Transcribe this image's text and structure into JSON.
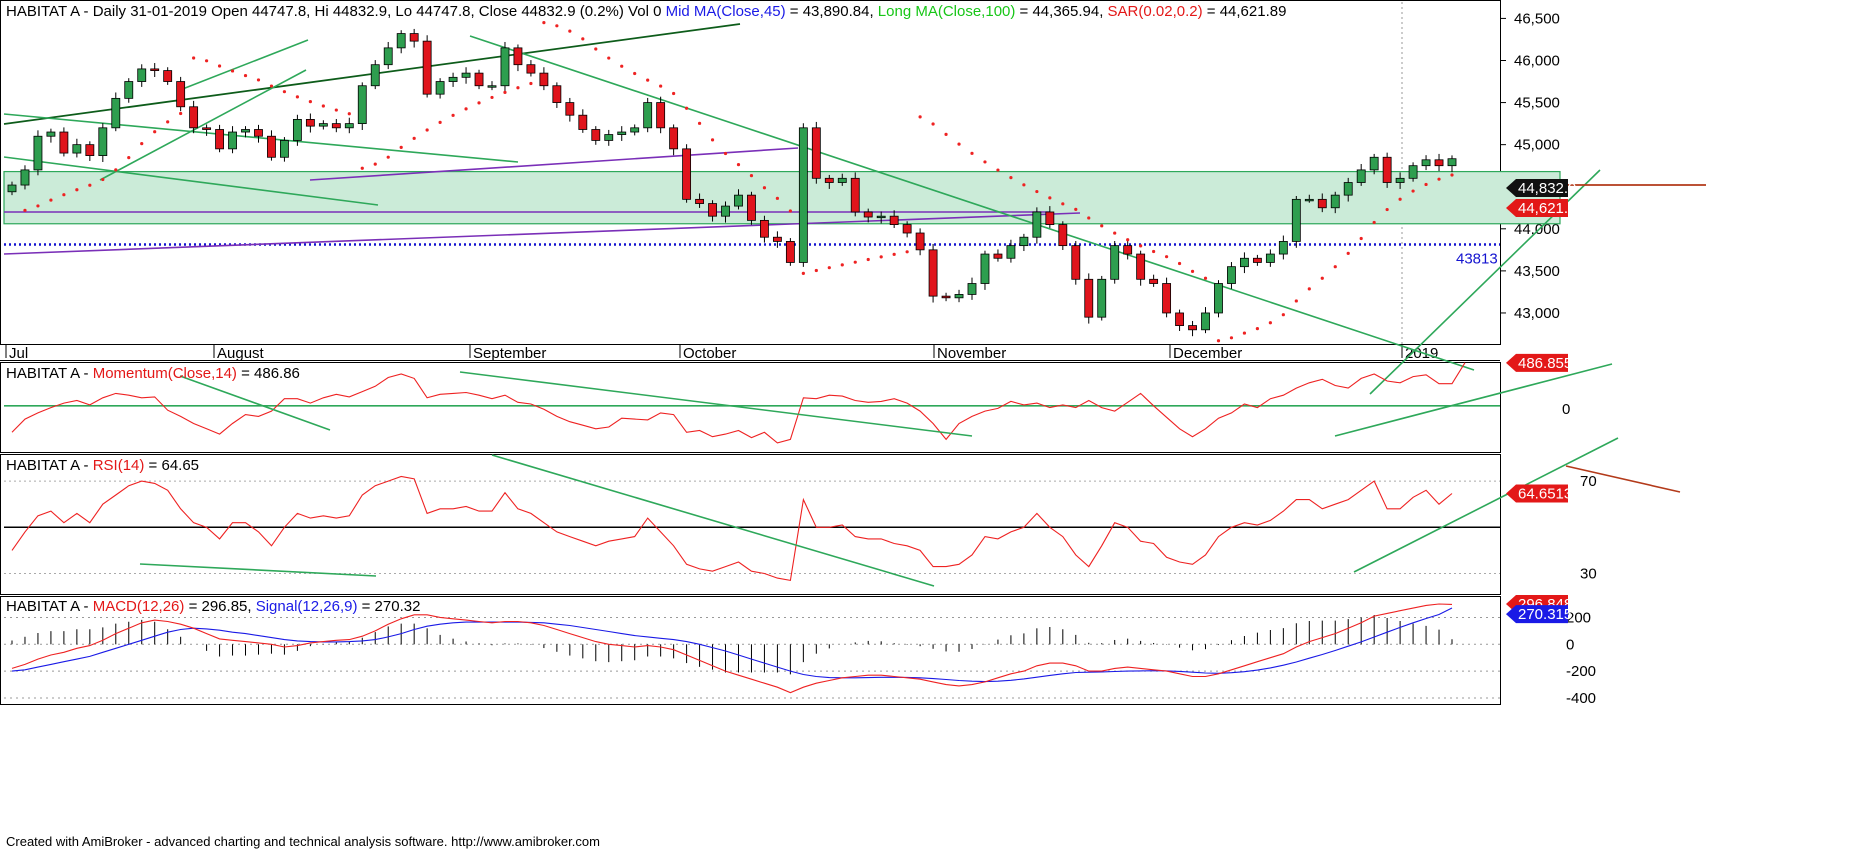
{
  "header": {
    "symbol": "HABITAT A",
    "main_prefix": " - Daily 31-01-2019 Open 44747.8, Hi 44832.9, Lo 44747.8, Close 44832.9 (0.2%) Vol 0 ",
    "mid_ma_label": "Mid MA(Close,45)",
    "mid_ma_value": " = 43,890.84, ",
    "long_ma_label": "Long MA(Close,100)",
    "long_ma_value": " = 44,365.94, ",
    "sar_label": "SAR(0.02,0.2)",
    "sar_value": " = 44,621.89",
    "momentum_label": "Momentum(Close,14)",
    "momentum_value": " = 486.86",
    "rsi_label": "RSI(14)",
    "rsi_value": " = 64.65",
    "macd_label": "MACD(12,26)",
    "macd_value": " = 296.85, ",
    "signal_label": "Signal(12,26,9)",
    "signal_value": " = 270.32",
    "dash": " - "
  },
  "footer": "Created with AmiBroker - advanced charting and technical analysis software. http://www.amibroker.com",
  "colors": {
    "up": "#2e9e4f",
    "down": "#e0141c",
    "trend": "#2ea85a",
    "purple": "#7a2fb8",
    "darkgreen": "#0d5c1a",
    "zone": "#cbebd8",
    "support": "#1414d0",
    "resistance": "#b33a1a",
    "sar": "#ee2222",
    "label_dark": "#000000",
    "label_red": "#e31818",
    "label_blue": "#1a1ae6"
  },
  "chart_data": [
    {
      "type": "candlestick",
      "title": "HABITAT A - Daily 31-01-2019",
      "x_labels": [
        "Jul",
        "August",
        "September",
        "October",
        "November",
        "December",
        "2019"
      ],
      "y_ticks": [
        "46,500",
        "46,000",
        "45,500",
        "45,000",
        "44,500",
        "44,000",
        "43,500",
        "43,000"
      ],
      "ylim": [
        42750,
        46600
      ],
      "price_tags": {
        "close": "44,832.9",
        "sar": "44,621.9",
        "support": "43813"
      },
      "support_level": 43813,
      "zone": [
        44060,
        44680
      ],
      "closes": [
        44520,
        44700,
        45100,
        45150,
        44900,
        45000,
        44870,
        45200,
        45550,
        45750,
        45900,
        45880,
        45750,
        45450,
        45200,
        45180,
        44950,
        45150,
        45180,
        45100,
        44850,
        45050,
        45300,
        45220,
        45250,
        45200,
        45250,
        45700,
        45950,
        46150,
        46320,
        46230,
        45600,
        45750,
        45800,
        45850,
        45700,
        45700,
        46150,
        45950,
        45850,
        45700,
        45500,
        45350,
        45180,
        45050,
        45120,
        45150,
        45200,
        45500,
        45200,
        44950,
        44350,
        44300,
        44150,
        44270,
        44400,
        44100,
        43900,
        43850,
        43600,
        45200,
        44600,
        44550,
        44600,
        44200,
        44140,
        44150,
        44050,
        43950,
        43750,
        43200,
        43180,
        43220,
        43350,
        43700,
        43650,
        43800,
        43900,
        44200,
        44050,
        43800,
        43400,
        42950,
        43400,
        43800,
        43700,
        43400,
        43350,
        43000,
        42850,
        42800,
        43000,
        43350,
        43550,
        43650,
        43600,
        43700,
        43850,
        44350,
        44350,
        44250,
        44400,
        44550,
        44700,
        44850,
        44550,
        44600,
        44750,
        44820,
        44750,
        44832.9
      ]
    },
    {
      "type": "line",
      "title": "HABITAT A - Momentum(Close,14) = 486.86",
      "y_ticks": [
        "0"
      ],
      "tag": "486.855",
      "values": [
        -300,
        -150,
        -80,
        -20,
        30,
        60,
        10,
        90,
        140,
        120,
        90,
        100,
        -50,
        -120,
        -200,
        -260,
        -320,
        -200,
        -100,
        -120,
        -60,
        80,
        80,
        30,
        90,
        130,
        100,
        160,
        220,
        320,
        360,
        310,
        90,
        130,
        140,
        150,
        120,
        80,
        120,
        40,
        20,
        -40,
        -120,
        -180,
        -220,
        -260,
        -240,
        -140,
        -150,
        -160,
        -80,
        -100,
        -300,
        -280,
        -350,
        -320,
        -280,
        -360,
        -300,
        -420,
        -380,
        90,
        80,
        120,
        110,
        60,
        40,
        50,
        80,
        30,
        -60,
        -200,
        -380,
        -200,
        -120,
        -60,
        -30,
        50,
        10,
        30,
        -20,
        10,
        -20,
        60,
        -20,
        -60,
        40,
        140,
        0,
        -130,
        -260,
        -350,
        -260,
        -140,
        -80,
        20,
        -20,
        80,
        120,
        200,
        260,
        300,
        230,
        200,
        310,
        360,
        280,
        260,
        330,
        350,
        250,
        250,
        486.86
      ]
    },
    {
      "type": "line",
      "title": "HABITAT A - RSI(14) = 64.65",
      "y_ticks": [
        "70",
        "30"
      ],
      "tag": "64.6513",
      "values": [
        40,
        48,
        55,
        57,
        52,
        56,
        52,
        60,
        64,
        68,
        70,
        69,
        66,
        58,
        52,
        50,
        45,
        52,
        52,
        48,
        42,
        50,
        56,
        54,
        55,
        54,
        55,
        64,
        68,
        70,
        72,
        71,
        56,
        58,
        58,
        59,
        57,
        57,
        65,
        58,
        56,
        52,
        48,
        46,
        44,
        42,
        44,
        45,
        46,
        54,
        48,
        42,
        34,
        32,
        31,
        33,
        35,
        31,
        30,
        28,
        27,
        62,
        50,
        50,
        51,
        46,
        45,
        45,
        43,
        42,
        40,
        33,
        33,
        34,
        38,
        46,
        45,
        48,
        50,
        56,
        50,
        46,
        38,
        33,
        42,
        52,
        50,
        44,
        43,
        37,
        35,
        34,
        38,
        46,
        50,
        52,
        51,
        53,
        57,
        62,
        62,
        58,
        60,
        62,
        66,
        70,
        58,
        58,
        63,
        66,
        60,
        64.65
      ]
    },
    {
      "type": "line",
      "title": "HABITAT A - MACD(12,26) = 296.85, Signal(12,26,9) = 270.32",
      "y_ticks": [
        "200",
        "0",
        "-200",
        "-400"
      ],
      "tags": {
        "macd": "296.848",
        "signal": "270.315"
      },
      "series": [
        {
          "name": "MACD(12,26)",
          "values": [
            -180,
            -150,
            -110,
            -80,
            -60,
            -30,
            -10,
            30,
            80,
            120,
            160,
            180,
            170,
            150,
            120,
            80,
            40,
            30,
            20,
            10,
            0,
            -20,
            -10,
            10,
            20,
            30,
            35,
            60,
            100,
            150,
            190,
            220,
            220,
            200,
            190,
            180,
            170,
            160,
            170,
            170,
            160,
            140,
            110,
            80,
            50,
            20,
            0,
            -10,
            -20,
            -10,
            -20,
            -40,
            -80,
            -120,
            -160,
            -200,
            -230,
            -260,
            -290,
            -320,
            -360,
            -320,
            -290,
            -270,
            -250,
            -240,
            -230,
            -230,
            -240,
            -250,
            -260,
            -280,
            -300,
            -310,
            -300,
            -280,
            -250,
            -220,
            -200,
            -160,
            -140,
            -140,
            -160,
            -200,
            -200,
            -180,
            -170,
            -180,
            -190,
            -200,
            -220,
            -240,
            -240,
            -220,
            -190,
            -160,
            -130,
            -100,
            -70,
            -20,
            20,
            50,
            80,
            120,
            160,
            210,
            230,
            250,
            270,
            290,
            300,
            296.85
          ]
        },
        {
          "name": "Signal(12,26,9)",
          "values": [
            -200,
            -190,
            -170,
            -150,
            -130,
            -110,
            -90,
            -60,
            -30,
            0,
            30,
            60,
            90,
            110,
            120,
            115,
            105,
            90,
            80,
            65,
            50,
            35,
            25,
            20,
            18,
            18,
            20,
            25,
            35,
            55,
            80,
            110,
            135,
            150,
            160,
            165,
            165,
            165,
            165,
            165,
            163,
            160,
            150,
            140,
            125,
            110,
            95,
            80,
            65,
            55,
            45,
            35,
            20,
            0,
            -25,
            -50,
            -80,
            -110,
            -140,
            -170,
            -200,
            -225,
            -240,
            -248,
            -250,
            -250,
            -248,
            -246,
            -246,
            -247,
            -250,
            -256,
            -262,
            -270,
            -275,
            -278,
            -275,
            -268,
            -258,
            -245,
            -232,
            -220,
            -210,
            -208,
            -206,
            -203,
            -200,
            -198,
            -197,
            -198,
            -202,
            -208,
            -214,
            -216,
            -212,
            -204,
            -192,
            -176,
            -156,
            -132,
            -104,
            -76,
            -46,
            -14,
            18,
            54,
            90,
            126,
            160,
            192,
            222,
            270.32
          ]
        }
      ]
    }
  ]
}
